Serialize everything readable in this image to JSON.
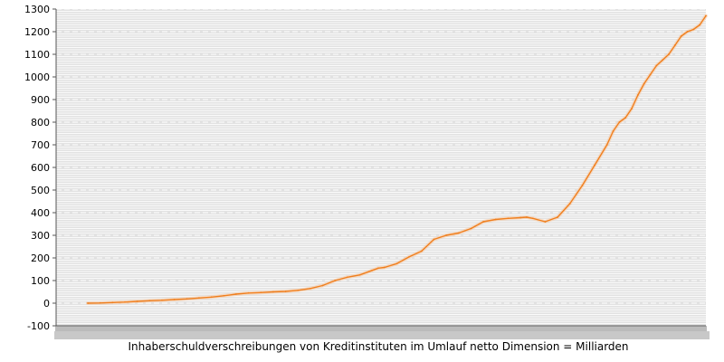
{
  "chart_data": {
    "type": "line",
    "xlabel": "Inhaberschuldverschreibungen von Kreditinstituten im Umlauf netto Dimension = Milliarden",
    "ylim": [
      -100,
      1300
    ],
    "y_ticks": [
      -100,
      0,
      100,
      200,
      300,
      400,
      500,
      600,
      700,
      800,
      900,
      1000,
      1100,
      1200,
      1300
    ],
    "grid": true,
    "series": [
      {
        "color": "#f07f1e",
        "x": [
          0,
          2,
          4,
          6,
          8,
          10,
          12,
          14,
          16,
          18,
          20,
          22,
          24,
          26,
          28,
          30,
          32,
          34,
          36,
          38,
          40,
          42,
          44,
          46,
          47,
          48,
          50,
          52,
          54,
          56,
          58,
          60,
          62,
          64,
          66,
          68,
          70,
          71,
          72,
          74,
          76,
          78,
          80,
          82,
          84,
          85,
          86,
          87,
          88,
          89,
          90,
          91,
          92,
          93,
          94,
          95,
          96,
          97,
          98,
          99,
          100
        ],
        "values": [
          0,
          1,
          3,
          5,
          8,
          11,
          13,
          16,
          19,
          23,
          27,
          33,
          40,
          45,
          47,
          50,
          52,
          57,
          65,
          78,
          100,
          115,
          125,
          145,
          155,
          158,
          175,
          205,
          230,
          282,
          300,
          310,
          330,
          360,
          370,
          375,
          378,
          380,
          375,
          360,
          380,
          440,
          520,
          610,
          700,
          760,
          800,
          820,
          860,
          920,
          970,
          1010,
          1050,
          1075,
          1100,
          1140,
          1180,
          1200,
          1210,
          1230,
          1270
        ]
      }
    ]
  }
}
